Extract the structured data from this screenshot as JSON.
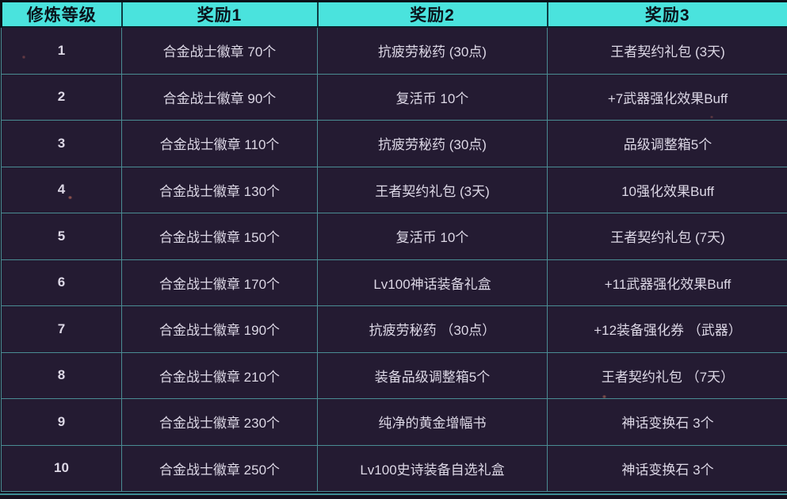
{
  "table": {
    "headers": [
      "修炼等级",
      "奖励1",
      "奖励2",
      "奖励3"
    ],
    "rows": [
      [
        "1",
        "合金战士徽章 70个",
        "抗疲劳秘药 (30点)",
        "王者契约礼包 (3天)"
      ],
      [
        "2",
        "合金战士徽章 90个",
        "复活币 10个",
        "+7武器强化效果Buff"
      ],
      [
        "3",
        "合金战士徽章 110个",
        "抗疲劳秘药 (30点)",
        "品级调整箱5个"
      ],
      [
        "4",
        "合金战士徽章 130个",
        "王者契约礼包 (3天)",
        "10强化效果Buff"
      ],
      [
        "5",
        "合金战士徽章 150个",
        "复活币 10个",
        "王者契约礼包 (7天)"
      ],
      [
        "6",
        "合金战士徽章 170个",
        "Lv100神话装备礼盒",
        "+11武器强化效果Buff"
      ],
      [
        "7",
        "合金战士徽章 190个",
        "抗疲劳秘药 （30点）",
        "+12装备强化券 （武器）"
      ],
      [
        "8",
        "合金战士徽章 210个",
        "装备品级调整箱5个",
        "王者契约礼包 （7天）"
      ],
      [
        "9",
        "合金战士徽章 230个",
        "纯净的黄金增幅书",
        "神话变换石 3个"
      ],
      [
        "10",
        "合金战士徽章 250个",
        "Lv100史诗装备自选礼盒",
        "神话变换石 3个"
      ]
    ]
  },
  "colors": {
    "header_bg": "#4ae3dd",
    "header_text": "#0a141c",
    "row_bg": "#241b32",
    "cell_border": "#4a8c93",
    "body_text": "#ddd8e6"
  }
}
